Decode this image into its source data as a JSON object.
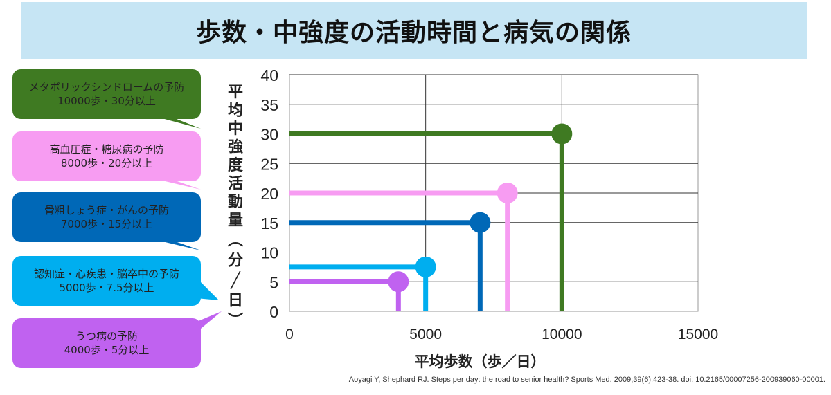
{
  "title": "歩数・中強度の活動時間と病気の関係",
  "callouts": [
    {
      "line1": "メタボリックシンドロームの予防",
      "line2": "10000歩・30分以上",
      "color": "#3f7a22"
    },
    {
      "line1": "高血圧症・糖尿病の予防",
      "line2": "8000歩・20分以上",
      "color": "#f79cf2"
    },
    {
      "line1": "骨粗しょう症・がんの予防",
      "line2": "7000歩・15分以上",
      "color": "#0068b7"
    },
    {
      "line1": "認知症・心疾患・脳卒中の予防",
      "line2": "5000歩・7.5分以上",
      "color": "#00aeef"
    },
    {
      "line1": "うつ病の予防",
      "line2": "4000歩・5分以上",
      "color": "#c062f0"
    }
  ],
  "chart_data": {
    "type": "scatter",
    "title": "",
    "xlabel": "平均歩数（歩／日）",
    "ylabel": "平均中強度活動量（分／日）",
    "xlim": [
      0,
      15000
    ],
    "ylim": [
      0,
      40
    ],
    "xticks": [
      "0",
      "5000",
      "10000",
      "15000"
    ],
    "yticks": [
      "0",
      "5",
      "10",
      "15",
      "20",
      "25",
      "30",
      "35",
      "40"
    ],
    "grid": true,
    "points": [
      {
        "name": "メタボリックシンドロームの予防",
        "x": 10000,
        "y": 30,
        "color": "#3f7a22"
      },
      {
        "name": "高血圧症・糖尿病の予防",
        "x": 8000,
        "y": 20,
        "color": "#f79cf2"
      },
      {
        "name": "骨粗しょう症・がんの予防",
        "x": 7000,
        "y": 15,
        "color": "#0068b7"
      },
      {
        "name": "認知症・心疾患・脳卒中の予防",
        "x": 5000,
        "y": 7.5,
        "color": "#00aeef"
      },
      {
        "name": "うつ病の予防",
        "x": 4000,
        "y": 5,
        "color": "#c062f0"
      }
    ]
  },
  "citation": "Aoyagi Y, Shephard RJ. Steps per day: the road to senior health? Sports Med. 2009;39(6):423-38. doi: 10.2165/00007256-200939060-00001."
}
